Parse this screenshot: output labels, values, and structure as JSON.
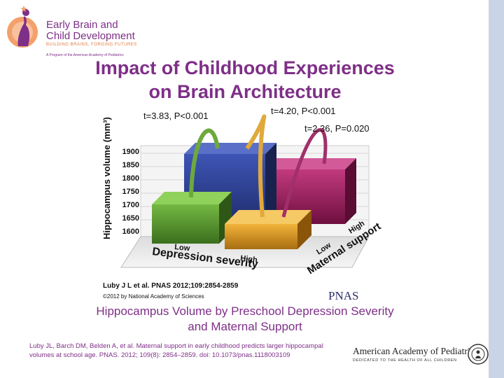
{
  "logo": {
    "line1": "Early Brain and",
    "line2": "Child Development",
    "tagline": "BUILDING BRAINS, FORGING FUTURES",
    "program": "A Program of the American Academy of Pediatrics"
  },
  "title": {
    "line1": "Impact of Childhood Experiences",
    "line2": "on Brain Architecture"
  },
  "chart_data": {
    "type": "bar",
    "title": "",
    "ylabel": "Hippocampus volume (mm³)",
    "yticks": [
      "1900",
      "1850",
      "1800",
      "1750",
      "1700",
      "1650",
      "1600"
    ],
    "ylim": [
      1600,
      1900
    ],
    "x_axis": {
      "label": "Depression severity",
      "low": "Low",
      "high": "High"
    },
    "z_axis": {
      "label": "Maternal support",
      "low": "Low",
      "high": "High"
    },
    "bars": [
      {
        "name": "Low depression, High maternal support",
        "color": "#2e3f8f"
      },
      {
        "name": "High depression, High maternal support",
        "color": "#9b1a5c"
      },
      {
        "name": "Low depression, Low maternal support",
        "color": "#4e8a2c"
      },
      {
        "name": "High depression, Low maternal support",
        "color": "#c98b1a"
      }
    ],
    "annotations": [
      "t=3.83, P<0.001",
      "t=4.20, P<0.001",
      "t=2.36, P=0.020"
    ],
    "source": "Luby J L et al. PNAS 2012;109:2854-2859",
    "copyright": "©2012 by National Academy of Sciences",
    "journal": "PNAS"
  },
  "subtitle": {
    "line1": "Hippocampus Volume by Preschool Depression Severity",
    "line2": "and Maternal Support"
  },
  "citation": {
    "line1": "Luby JL, Barch DM, Belden A, et al. Maternal support in early childhood predicts larger hippocampal",
    "line2": "volumes at school age. PNAS. 2012; 109(8): 2854–2859. doi: 10.1073/pnas.1118003109"
  },
  "aap": {
    "name": "American Academy of Pediatrics",
    "tagline": "DEDICATED TO THE HEALTH OF ALL CHILDREN"
  },
  "colors": {
    "accent": "#7e2f87",
    "orange": "#e07a3a"
  }
}
